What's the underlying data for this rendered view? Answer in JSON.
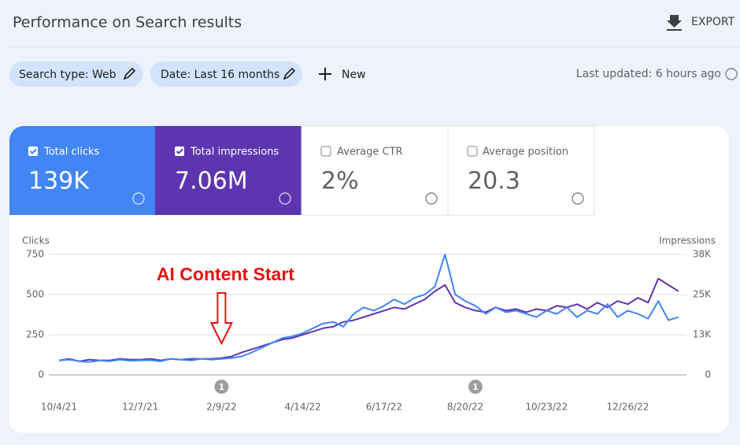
{
  "header": {
    "title": "Performance on Search results",
    "export": "EXPORT"
  },
  "filters": [
    "Search type: Web",
    "Date: Last 16 months"
  ],
  "new_button": "New",
  "last_updated": "Last updated: 6 hours ago",
  "cards": [
    {
      "label": "Total clicks",
      "value": "139K"
    },
    {
      "label": "Total impressions",
      "value": "7.06M"
    },
    {
      "label": "Average CTR",
      "value": "2%"
    },
    {
      "label": "Average position",
      "value": "20.3"
    }
  ],
  "chart_data": {
    "type": "line",
    "y_label": "Clicks",
    "y2_label": "Impressions",
    "x": [
      "10/4/21",
      "10/12/21",
      "10/20/21",
      "10/28/21",
      "11/5/21",
      "11/13/21",
      "11/21/21",
      "11/29/21",
      "12/7/21",
      "12/15/21",
      "12/23/21",
      "12/31/21",
      "1/8/22",
      "1/16/22",
      "1/24/22",
      "2/1/22",
      "2/9/22",
      "2/17/22",
      "2/25/22",
      "3/5/22",
      "3/13/22",
      "3/21/22",
      "3/29/22",
      "4/6/22",
      "4/14/22",
      "4/22/22",
      "4/30/22",
      "5/8/22",
      "5/16/22",
      "5/24/22",
      "6/1/22",
      "6/9/22",
      "6/17/22",
      "6/25/22",
      "7/3/22",
      "7/11/22",
      "7/19/22",
      "7/27/22",
      "8/4/22",
      "8/12/22",
      "8/20/22",
      "8/28/22",
      "9/5/22",
      "9/13/22",
      "9/21/22",
      "9/29/22",
      "10/7/22",
      "10/15/22",
      "10/23/22",
      "10/31/22",
      "11/8/22",
      "11/16/22",
      "11/24/22",
      "12/2/22",
      "12/10/22",
      "12/18/22",
      "12/26/22",
      "1/3/23",
      "1/11/23",
      "1/19/23",
      "1/27/23",
      "2/4/23"
    ],
    "series": [
      {
        "name": "Clicks",
        "color": "#4285f4",
        "values": [
          90,
          95,
          85,
          80,
          90,
          85,
          95,
          88,
          90,
          92,
          85,
          100,
          95,
          90,
          100,
          95,
          100,
          105,
          115,
          140,
          170,
          200,
          230,
          240,
          260,
          290,
          320,
          330,
          300,
          380,
          420,
          400,
          430,
          470,
          440,
          480,
          500,
          550,
          750,
          500,
          460,
          430,
          380,
          420,
          390,
          400,
          380,
          360,
          400,
          380,
          420,
          360,
          400,
          380,
          440,
          360,
          400,
          380,
          350,
          460,
          340,
          360
        ]
      },
      {
        "name": "Impressions",
        "color": "#5e35b1",
        "axis": "y2",
        "values": [
          4500,
          5000,
          4250,
          4750,
          4500,
          4500,
          5000,
          4750,
          4750,
          5000,
          4500,
          5000,
          4750,
          5000,
          5000,
          5000,
          5250,
          5750,
          7000,
          8000,
          9000,
          10000,
          11000,
          11500,
          12500,
          13500,
          14500,
          15000,
          16500,
          17000,
          18000,
          19000,
          20000,
          21000,
          20500,
          22000,
          23500,
          26000,
          28000,
          22500,
          21000,
          20000,
          19500,
          21000,
          20000,
          20500,
          19500,
          20500,
          20000,
          21500,
          21000,
          22000,
          20500,
          22500,
          21000,
          23000,
          22000,
          24000,
          22500,
          30000,
          28000,
          26000
        ]
      }
    ],
    "ylim": [
      0,
      750
    ],
    "yticks": [
      0,
      250,
      500,
      750
    ],
    "y2lim": [
      0,
      37500
    ],
    "y2ticks": [
      {
        "value": 0,
        "label": "0"
      },
      {
        "value": 12500,
        "label": "13K"
      },
      {
        "value": 25000,
        "label": "25K"
      },
      {
        "value": 37500,
        "label": "38K"
      }
    ],
    "xticks": [
      "10/4/21",
      "12/7/21",
      "2/9/22",
      "4/14/22",
      "6/17/22",
      "8/20/22",
      "10/23/22",
      "12/26/22"
    ],
    "grid": true,
    "annotations": [
      {
        "label": "1",
        "x": "2/9/22"
      },
      {
        "label": "1",
        "x": "8/28/22"
      }
    ],
    "callout": {
      "text": "AI Content Start",
      "x": "2/9/22"
    }
  }
}
